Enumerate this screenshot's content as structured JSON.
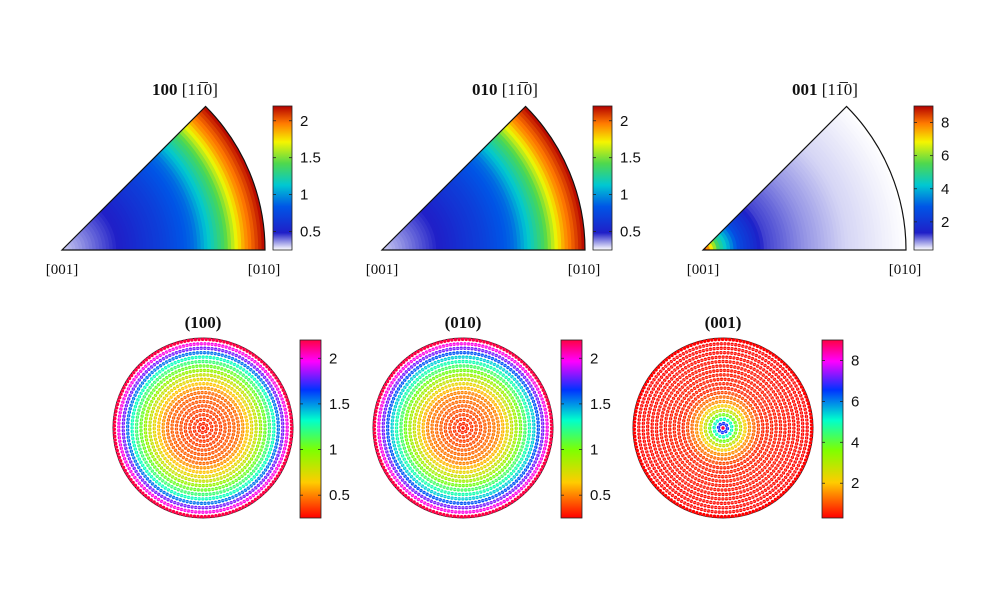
{
  "chart_data": [
    {
      "type": "heatmap",
      "panel": "inverse-pole-figure",
      "title": {
        "bold": "100",
        "direction": "[1̅0]",
        "plain": "[11̅0]"
      },
      "corners": [
        "[001]",
        "[010]"
      ],
      "colormap": "white-blue-cyan-green-yellow-red",
      "range": [
        0.25,
        2.2
      ],
      "colorbar_ticks": [
        "0.5",
        "1",
        "1.5",
        "2"
      ],
      "colorbar_tick_values": [
        0.5,
        1,
        1.5,
        2
      ],
      "description_profile": {
        "radial_fraction": [
          0,
          0.3,
          0.5,
          0.65,
          0.8,
          0.9,
          1.0
        ],
        "value": [
          0.3,
          0.5,
          0.7,
          0.9,
          1.4,
          1.9,
          2.2
        ]
      }
    },
    {
      "type": "heatmap",
      "panel": "inverse-pole-figure",
      "title": {
        "bold": "010",
        "plain": "[11̅0]"
      },
      "corners": [
        "[001]",
        "[010]"
      ],
      "colormap": "white-blue-cyan-green-yellow-red",
      "range": [
        0.25,
        2.2
      ],
      "colorbar_ticks": [
        "0.5",
        "1",
        "1.5",
        "2"
      ],
      "colorbar_tick_values": [
        0.5,
        1,
        1.5,
        2
      ],
      "description_profile": {
        "radial_fraction": [
          0,
          0.3,
          0.5,
          0.65,
          0.8,
          0.9,
          1.0
        ],
        "value": [
          0.3,
          0.5,
          0.7,
          0.9,
          1.4,
          1.9,
          2.2
        ]
      }
    },
    {
      "type": "heatmap",
      "panel": "inverse-pole-figure",
      "title": {
        "bold": "001",
        "plain": "[11̅0]"
      },
      "corners": [
        "[001]",
        "[010]"
      ],
      "colormap": "white-blue-cyan-green-yellow-red",
      "range": [
        0.3,
        9
      ],
      "colorbar_ticks": [
        "2",
        "4",
        "6",
        "8"
      ],
      "colorbar_tick_values": [
        2,
        4,
        6,
        8
      ],
      "description_profile": {
        "radial_fraction": [
          0,
          0.08,
          0.18,
          0.3,
          0.5,
          0.7,
          1.0
        ],
        "value": [
          9,
          5,
          2.5,
          1.2,
          0.8,
          0.5,
          0.3
        ]
      }
    },
    {
      "type": "scatter",
      "panel": "pole-figure",
      "title": "(100)",
      "colormap": "red-yellow-green-cyan-blue-magenta",
      "range": [
        0.25,
        2.2
      ],
      "colorbar_ticks": [
        "0.5",
        "1",
        "1.5",
        "2"
      ],
      "colorbar_tick_values": [
        0.5,
        1,
        1.5,
        2
      ],
      "description_profile": {
        "radial_fraction": [
          0,
          0.4,
          0.6,
          0.8,
          0.9,
          1.0
        ],
        "value": [
          0.3,
          0.45,
          0.8,
          1.3,
          1.8,
          2.2
        ]
      }
    },
    {
      "type": "scatter",
      "panel": "pole-figure",
      "title": "(010)",
      "colormap": "red-yellow-green-cyan-blue-magenta",
      "range": [
        0.25,
        2.2
      ],
      "colorbar_ticks": [
        "0.5",
        "1",
        "1.5",
        "2"
      ],
      "colorbar_tick_values": [
        0.5,
        1,
        1.5,
        2
      ],
      "description_profile": {
        "radial_fraction": [
          0,
          0.4,
          0.6,
          0.8,
          0.9,
          1.0
        ],
        "value": [
          0.3,
          0.5,
          0.9,
          1.4,
          1.8,
          2.2
        ]
      }
    },
    {
      "type": "scatter",
      "panel": "pole-figure",
      "title": "(001)",
      "colormap": "red-yellow-green-cyan-blue-magenta",
      "range": [
        0.3,
        9
      ],
      "colorbar_ticks": [
        "2",
        "4",
        "6",
        "8"
      ],
      "colorbar_tick_values": [
        2,
        4,
        6,
        8
      ],
      "description_profile": {
        "radial_fraction": [
          0,
          0.04,
          0.1,
          0.18,
          0.3,
          0.45,
          1.0
        ],
        "value": [
          9,
          7,
          5,
          3,
          1.5,
          0.6,
          0.3
        ]
      }
    }
  ]
}
